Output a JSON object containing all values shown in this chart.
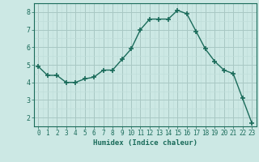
{
  "x": [
    0,
    1,
    2,
    3,
    4,
    5,
    6,
    7,
    8,
    9,
    10,
    11,
    12,
    13,
    14,
    15,
    16,
    17,
    18,
    19,
    20,
    21,
    22,
    23
  ],
  "y": [
    4.9,
    4.4,
    4.4,
    4.0,
    4.0,
    4.2,
    4.3,
    4.7,
    4.7,
    5.3,
    5.9,
    7.0,
    7.6,
    7.6,
    7.6,
    8.1,
    7.9,
    6.9,
    5.9,
    5.2,
    4.7,
    4.5,
    3.1,
    1.7
  ],
  "line_color": "#1a6b5a",
  "marker": "+",
  "marker_size": 4,
  "bg_color": "#cce8e4",
  "grid_color_major": "#a8c8c4",
  "grid_color_minor": "#c0deda",
  "axis_color": "#1a6b5a",
  "xlabel": "Humidex (Indice chaleur)",
  "ylim": [
    1.5,
    8.5
  ],
  "xlim": [
    -0.5,
    23.5
  ],
  "yticks": [
    2,
    3,
    4,
    5,
    6,
    7,
    8
  ],
  "xticks": [
    0,
    1,
    2,
    3,
    4,
    5,
    6,
    7,
    8,
    9,
    10,
    11,
    12,
    13,
    14,
    15,
    16,
    17,
    18,
    19,
    20,
    21,
    22,
    23
  ],
  "tick_fontsize": 5.5,
  "label_fontsize": 6.5,
  "linewidth": 1.0
}
